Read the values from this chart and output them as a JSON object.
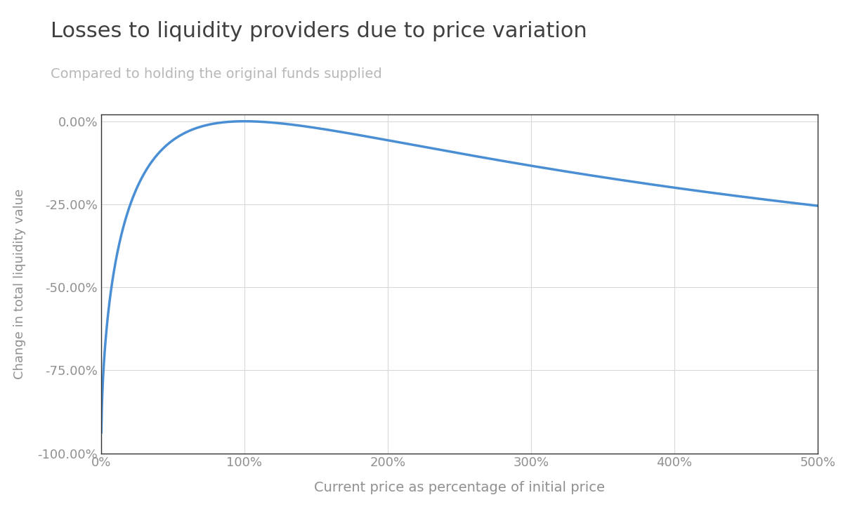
{
  "title": "Losses to liquidity providers due to price variation",
  "subtitle": "Compared to holding the original funds supplied",
  "xlabel": "Current price as percentage of initial price",
  "ylabel": "Change in total liquidity value",
  "title_color": "#404040",
  "subtitle_color": "#b8b8b8",
  "label_color": "#909090",
  "tick_color": "#909090",
  "line_color": "#4a8fd4",
  "background_color": "#ffffff",
  "grid_color": "#d8d8d8",
  "spine_color": "#333333",
  "x_min": 0.0,
  "x_max": 5.0,
  "y_min": -1.0,
  "y_max": 0.02,
  "x_ticks": [
    0.0,
    1.0,
    2.0,
    3.0,
    4.0,
    5.0
  ],
  "y_ticks": [
    0.0,
    -0.25,
    -0.5,
    -0.75,
    -1.0
  ],
  "line_width": 2.5
}
